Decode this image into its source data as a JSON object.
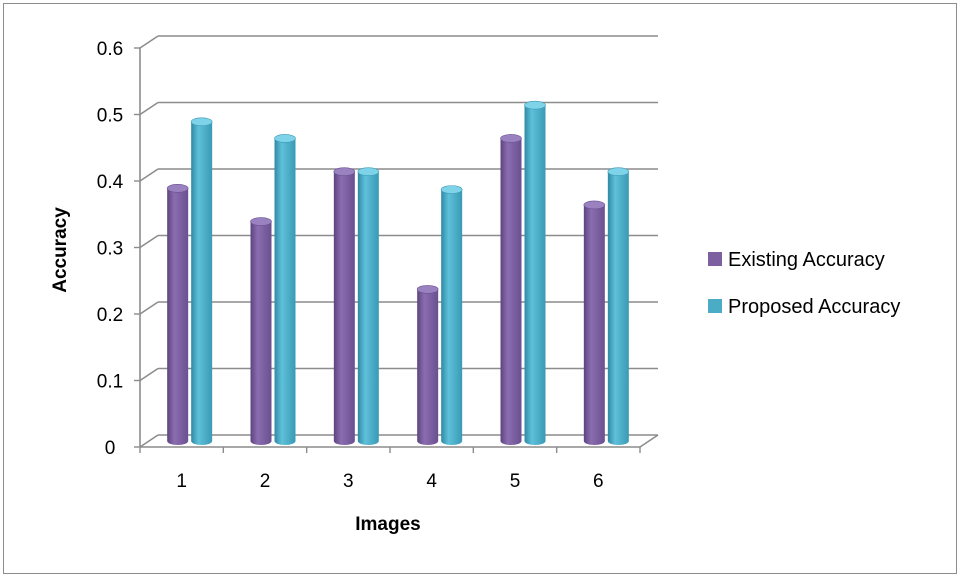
{
  "chart_data": {
    "type": "bar",
    "style": "3d-cylinder",
    "categories": [
      "1",
      "2",
      "3",
      "4",
      "5",
      "6"
    ],
    "series": [
      {
        "name": "Existing Accuracy",
        "color": "#7D60A0",
        "values": [
          0.38,
          0.33,
          0.405,
          0.228,
          0.455,
          0.355
        ]
      },
      {
        "name": "Proposed Accuracy",
        "color": "#4BACC6",
        "values": [
          0.48,
          0.455,
          0.405,
          0.378,
          0.505,
          0.405
        ]
      }
    ],
    "title": "",
    "xlabel": "Images",
    "ylabel": "Accuracy",
    "ylim": [
      0,
      0.6
    ],
    "yticks": [
      "0",
      "0.1",
      "0.2",
      "0.3",
      "0.4",
      "0.5",
      "0.6"
    ],
    "grid": true,
    "legend_position": "right"
  }
}
